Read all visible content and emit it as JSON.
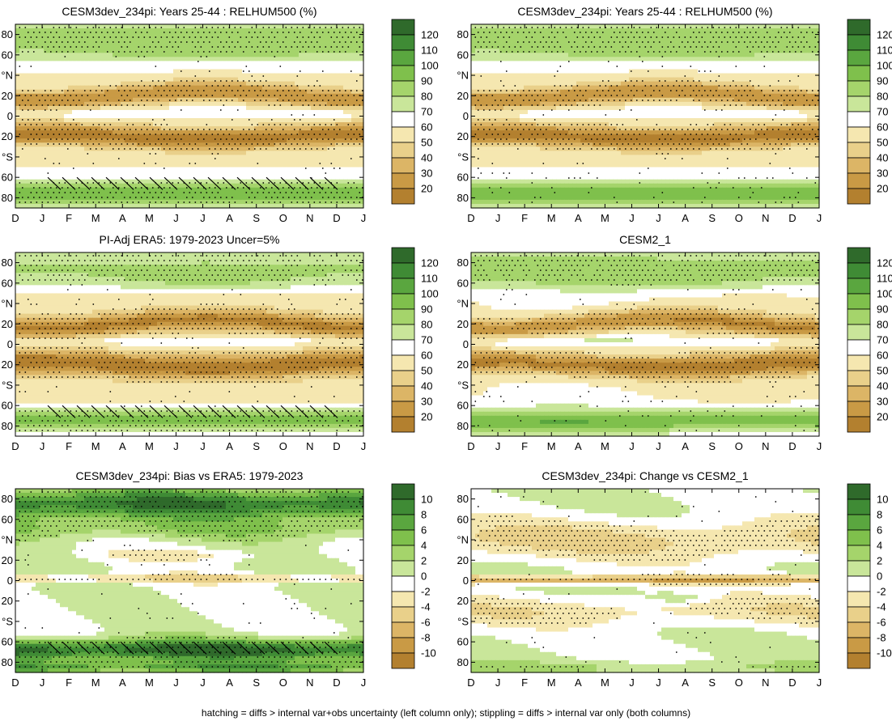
{
  "footer": "hatching = diffs > internal var+obs uncertainty (left column only); stippling = diffs > internal var only (both columns)",
  "colors": {
    "brown_dark": "#a9742f",
    "white": "#ffffff",
    "green_dark": "#2e6b2e"
  },
  "chart_data": [
    {
      "type": "heatmap",
      "title": "CESM3dev_234pi: Years 25-44 : RELHUM500 (%)",
      "xticks": [
        "D",
        "J",
        "F",
        "M",
        "A",
        "M",
        "J",
        "J",
        "A",
        "S",
        "O",
        "N",
        "D",
        "J"
      ],
      "yticks": [
        "80",
        "60",
        "°N",
        "20",
        "0",
        "20",
        "°S",
        "60",
        "80"
      ],
      "colorbar": [
        "120",
        "110",
        "100",
        "90",
        "80",
        "70",
        "60",
        "50",
        "40",
        "30",
        "20"
      ],
      "zlim": [
        15,
        125
      ],
      "stippled": true,
      "hatched_band": "60-80S"
    },
    {
      "type": "heatmap",
      "title": "CESM3dev_234pi: Years 25-44 : RELHUM500 (%)",
      "xticks": [
        "D",
        "J",
        "F",
        "M",
        "A",
        "M",
        "J",
        "J",
        "A",
        "S",
        "O",
        "N",
        "D",
        "J"
      ],
      "yticks": [
        "80",
        "60",
        "°N",
        "20",
        "0",
        "20",
        "°S",
        "60",
        "80"
      ],
      "colorbar": [
        "120",
        "110",
        "100",
        "90",
        "80",
        "70",
        "60",
        "50",
        "40",
        "30",
        "20"
      ],
      "zlim": [
        15,
        125
      ],
      "stippled": true
    },
    {
      "type": "heatmap",
      "title": "PI-Adj ERA5: 1979-2023 Uncer=5%",
      "xticks": [
        "D",
        "J",
        "F",
        "M",
        "A",
        "M",
        "J",
        "J",
        "A",
        "S",
        "O",
        "N",
        "D",
        "J"
      ],
      "yticks": [
        "80",
        "60",
        "°N",
        "20",
        "0",
        "20",
        "°S",
        "60",
        "80"
      ],
      "colorbar": [
        "120",
        "110",
        "100",
        "90",
        "80",
        "70",
        "60",
        "50",
        "40",
        "30",
        "20"
      ],
      "zlim": [
        15,
        125
      ],
      "stippled": true,
      "hatched_band": "60-80S"
    },
    {
      "type": "heatmap",
      "title": "CESM2_1",
      "xticks": [
        "D",
        "J",
        "F",
        "M",
        "A",
        "M",
        "J",
        "J",
        "A",
        "S",
        "O",
        "N",
        "D",
        "J"
      ],
      "yticks": [
        "80",
        "60",
        "°N",
        "20",
        "0",
        "20",
        "°S",
        "60",
        "80"
      ],
      "colorbar": [
        "120",
        "110",
        "100",
        "90",
        "80",
        "70",
        "60",
        "50",
        "40",
        "30",
        "20"
      ],
      "zlim": [
        15,
        125
      ],
      "stippled": true
    },
    {
      "type": "heatmap",
      "title": "CESM3dev_234pi: Bias vs ERA5: 1979-2023",
      "xticks": [
        "D",
        "J",
        "F",
        "M",
        "A",
        "M",
        "J",
        "J",
        "A",
        "S",
        "O",
        "N",
        "D",
        "J"
      ],
      "yticks": [
        "80",
        "60",
        "°N",
        "20",
        "0",
        "20",
        "°S",
        "60",
        "80"
      ],
      "colorbar": [
        "10",
        "8",
        "6",
        "4",
        "2",
        "0",
        "-2",
        "-4",
        "-6",
        "-8",
        "-10"
      ],
      "zlim": [
        -11,
        11
      ],
      "stippled": true,
      "hatched_band": "60-80S"
    },
    {
      "type": "heatmap",
      "title": "CESM3dev_234pi: Change vs CESM2_1",
      "xticks": [
        "D",
        "J",
        "F",
        "M",
        "A",
        "M",
        "J",
        "J",
        "A",
        "S",
        "O",
        "N",
        "D",
        "J"
      ],
      "yticks": [
        "80",
        "60",
        "°N",
        "20",
        "0",
        "20",
        "°S",
        "60",
        "80"
      ],
      "colorbar": [
        "10",
        "8",
        "6",
        "4",
        "2",
        "0",
        "-2",
        "-4",
        "-6",
        "-8",
        "-10"
      ],
      "zlim": [
        -11,
        11
      ],
      "stippled": true
    }
  ]
}
